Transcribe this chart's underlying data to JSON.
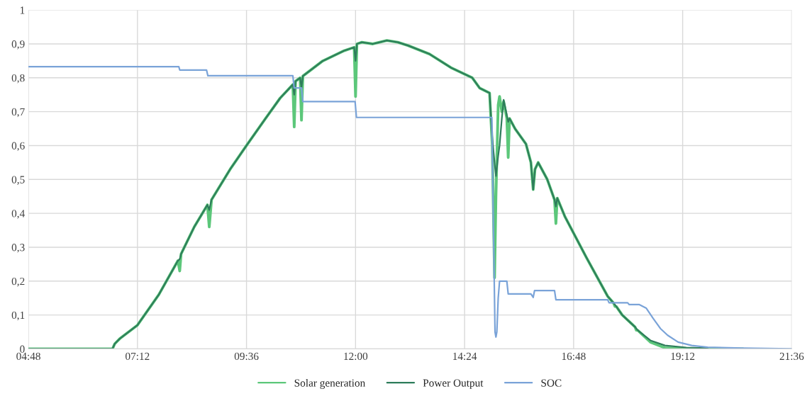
{
  "chart_data": {
    "type": "line",
    "xlim": [
      4.8,
      21.6
    ],
    "xticks": [
      {
        "value": 4.8,
        "label": "04:48"
      },
      {
        "value": 7.2,
        "label": "07:12"
      },
      {
        "value": 9.6,
        "label": "09:36"
      },
      {
        "value": 12.0,
        "label": "12:00"
      },
      {
        "value": 14.4,
        "label": "14:24"
      },
      {
        "value": 16.8,
        "label": "16:48"
      },
      {
        "value": 19.2,
        "label": "19:12"
      },
      {
        "value": 21.6,
        "label": "21:36"
      }
    ],
    "ylim": [
      0,
      1
    ],
    "yticks": [
      0,
      {
        "value": 0.1,
        "label": "0,1"
      },
      {
        "value": 0.2,
        "label": "0,2"
      },
      {
        "value": 0.3,
        "label": "0,3"
      },
      {
        "value": 0.4,
        "label": "0,4"
      },
      {
        "value": 0.5,
        "label": "0,5"
      },
      {
        "value": 0.6,
        "label": "0,6"
      },
      {
        "value": 0.7,
        "label": "0,7"
      },
      {
        "value": 0.8,
        "label": "0,8"
      },
      {
        "value": 0.9,
        "label": "0,9"
      },
      1
    ],
    "grid": true,
    "legend": "bottom",
    "series": [
      {
        "name": "Solar generation",
        "color": "#5cc77a",
        "x": [
          4.8,
          6.65,
          6.7,
          6.81,
          7.2,
          7.67,
          8.09,
          8.13,
          8.16,
          8.45,
          8.74,
          8.78,
          8.83,
          9.24,
          9.6,
          10.02,
          10.34,
          10.62,
          10.65,
          10.68,
          10.78,
          10.81,
          10.84,
          11.28,
          11.75,
          11.97,
          12.0,
          12.03,
          12.14,
          12.38,
          12.69,
          12.93,
          13.16,
          13.63,
          14.1,
          14.57,
          14.73,
          14.95,
          15.01,
          15.06,
          15.09,
          15.14,
          15.17,
          15.22,
          15.26,
          15.33,
          15.36,
          15.39,
          15.51,
          15.75,
          15.86,
          15.91,
          15.95,
          16.02,
          16.22,
          16.38,
          16.41,
          16.44,
          16.61,
          17.08,
          17.55,
          17.68,
          17.71,
          17.74,
          17.87,
          18.15,
          18.18,
          18.21,
          18.49,
          18.81,
          19.28,
          19.75,
          20.53
        ],
        "values": [
          0,
          0,
          0.015,
          0.03,
          0.07,
          0.16,
          0.26,
          0.23,
          0.28,
          0.36,
          0.425,
          0.36,
          0.44,
          0.53,
          0.6,
          0.68,
          0.74,
          0.78,
          0.655,
          0.79,
          0.8,
          0.675,
          0.805,
          0.85,
          0.88,
          0.89,
          0.745,
          0.9,
          0.905,
          0.9,
          0.91,
          0.905,
          0.895,
          0.87,
          0.83,
          0.8,
          0.77,
          0.755,
          0.6,
          0.21,
          0.45,
          0.72,
          0.745,
          0.7,
          0.73,
          0.68,
          0.565,
          0.68,
          0.65,
          0.605,
          0.55,
          0.47,
          0.53,
          0.55,
          0.5,
          0.44,
          0.37,
          0.445,
          0.39,
          0.27,
          0.155,
          0.135,
          0.125,
          0.125,
          0.1,
          0.065,
          0.055,
          0.055,
          0.02,
          0.003,
          0,
          0,
          0
        ]
      },
      {
        "name": "Power Output",
        "color": "#2e7d5b",
        "x": [
          4.8,
          6.65,
          6.7,
          6.81,
          7.2,
          7.67,
          8.09,
          8.13,
          8.16,
          8.45,
          8.74,
          8.78,
          8.83,
          9.24,
          9.6,
          10.02,
          10.34,
          10.62,
          10.65,
          10.68,
          10.78,
          10.81,
          10.84,
          11.28,
          11.75,
          11.97,
          12.0,
          12.03,
          12.14,
          12.38,
          12.69,
          12.93,
          13.16,
          13.63,
          14.1,
          14.57,
          14.73,
          14.95,
          15.01,
          15.06,
          15.09,
          15.14,
          15.17,
          15.22,
          15.26,
          15.33,
          15.36,
          15.39,
          15.51,
          15.75,
          15.86,
          15.91,
          15.95,
          16.02,
          16.22,
          16.38,
          16.41,
          16.44,
          16.61,
          17.08,
          17.55,
          17.68,
          17.71,
          17.74,
          17.87,
          18.15,
          18.18,
          18.21,
          18.49,
          18.81,
          19.28,
          19.75
        ],
        "values": [
          0,
          0,
          0.015,
          0.03,
          0.07,
          0.16,
          0.26,
          0.265,
          0.28,
          0.36,
          0.425,
          0.41,
          0.44,
          0.53,
          0.6,
          0.68,
          0.74,
          0.78,
          0.75,
          0.79,
          0.8,
          0.77,
          0.805,
          0.85,
          0.88,
          0.89,
          0.85,
          0.9,
          0.905,
          0.9,
          0.91,
          0.905,
          0.895,
          0.87,
          0.83,
          0.8,
          0.77,
          0.755,
          0.62,
          0.55,
          0.51,
          0.57,
          0.6,
          0.68,
          0.735,
          0.69,
          0.67,
          0.68,
          0.65,
          0.605,
          0.55,
          0.47,
          0.53,
          0.55,
          0.5,
          0.44,
          0.42,
          0.445,
          0.39,
          0.27,
          0.155,
          0.135,
          0.13,
          0.125,
          0.1,
          0.065,
          0.06,
          0.055,
          0.025,
          0.01,
          0.004,
          0.002
        ]
      },
      {
        "name": "SOC",
        "color": "#7aa3d8",
        "x": [
          4.8,
          8.11,
          8.13,
          8.72,
          8.75,
          10.62,
          10.65,
          10.81,
          10.84,
          11.99,
          12.02,
          15.0,
          15.03,
          15.07,
          15.09,
          15.11,
          15.14,
          15.17,
          15.33,
          15.36,
          15.86,
          15.91,
          15.94,
          16.38,
          16.41,
          17.55,
          17.58,
          17.99,
          18.02,
          18.24,
          18.4,
          18.55,
          18.71,
          18.87,
          19.1,
          19.4,
          19.75,
          20.53,
          21.6
        ],
        "values": [
          0.833,
          0.833,
          0.823,
          0.823,
          0.806,
          0.806,
          0.77,
          0.77,
          0.73,
          0.73,
          0.683,
          0.683,
          0.4,
          0.05,
          0.035,
          0.05,
          0.15,
          0.2,
          0.2,
          0.162,
          0.162,
          0.152,
          0.172,
          0.172,
          0.145,
          0.145,
          0.136,
          0.136,
          0.131,
          0.131,
          0.12,
          0.09,
          0.06,
          0.04,
          0.02,
          0.01,
          0.005,
          0.002,
          0
        ]
      }
    ]
  }
}
